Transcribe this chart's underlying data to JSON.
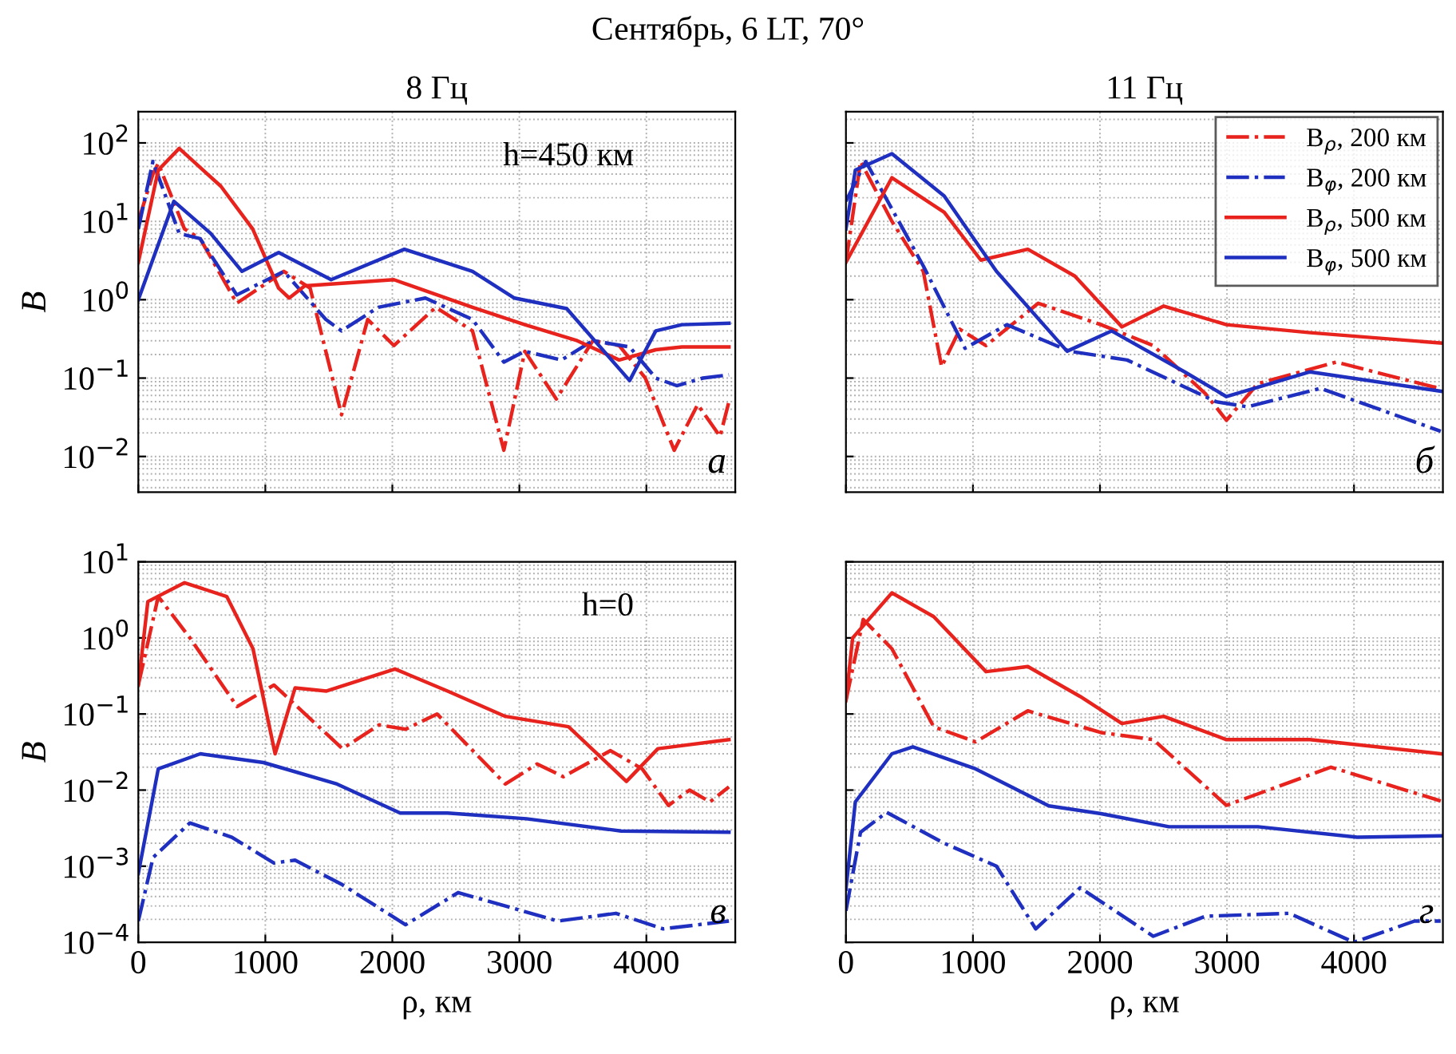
{
  "chart_data": [
    {
      "type": "line",
      "title": "8 Гц",
      "subtitle": "Сентябрь, 6 LT, 70°",
      "ylabel": "B",
      "log": "y",
      "grid": true,
      "legend": false,
      "tick_labels": "y",
      "xlim": [
        0,
        4700
      ],
      "xticks": [
        0,
        1000,
        2000,
        3000,
        4000
      ],
      "ylim": [
        0.0035,
        250
      ],
      "yticks": [
        {
          "value": 0.01,
          "label": "10$^{−2}$"
        },
        {
          "value": 0.1,
          "label": "10$^{−1}$"
        },
        {
          "value": 1,
          "label": "10$^{0}$"
        },
        {
          "value": 10,
          "label": "10$^{1}$"
        },
        {
          "value": 100,
          "label": "10$^{2}$"
        }
      ],
      "annotations": [
        "h=450 км",
        "а"
      ],
      "series": [
        {
          "color": "#e8231e",
          "line_style": "dashdot",
          "x": [
            0,
            115,
            157,
            363,
            487,
            775,
            1146,
            1353,
            1600,
            1806,
            2012,
            2342,
            2631,
            2878,
            3043,
            3291,
            3579,
            3786,
            3992,
            4219,
            4404,
            4580,
            4650
          ],
          "values": [
            10,
            40,
            55,
            8,
            6,
            0.9,
            2.3,
            1.4,
            0.034,
            0.56,
            0.26,
            0.8,
            0.4,
            0.012,
            0.22,
            0.054,
            0.3,
            0.26,
            0.1,
            0.012,
            0.046,
            0.018,
            0.05
          ]
        },
        {
          "color": "#1f2fbf",
          "line_style": "dashdot",
          "x": [
            0,
            115,
            322,
            487,
            775,
            1146,
            1476,
            1600,
            1889,
            2260,
            2631,
            2878,
            3043,
            3332,
            3579,
            3868,
            4074,
            4239,
            4445,
            4650
          ],
          "values": [
            8,
            58,
            7,
            6,
            1.15,
            2.3,
            0.56,
            0.4,
            0.8,
            1.05,
            0.56,
            0.16,
            0.22,
            0.17,
            0.3,
            0.25,
            0.1,
            0.08,
            0.1,
            0.11
          ]
        },
        {
          "color": "#e8231e",
          "line_style": "solid",
          "x": [
            0,
            157,
            322,
            650,
            900,
            1105,
            1188,
            1310,
            2012,
            2631,
            3043,
            3456,
            3786,
            4074,
            4280,
            4650
          ],
          "values": [
            3,
            45,
            85,
            28,
            8,
            1.4,
            1.05,
            1.5,
            1.8,
            0.8,
            0.48,
            0.3,
            0.17,
            0.23,
            0.25,
            0.25
          ]
        },
        {
          "color": "#1f2fbf",
          "line_style": "solid",
          "x": [
            0,
            280,
            570,
            816,
            1105,
            1518,
            2095,
            2631,
            2961,
            3373,
            3868,
            4074,
            4280,
            4650
          ],
          "values": [
            1,
            18,
            7,
            2.3,
            4,
            1.8,
            4.4,
            2.3,
            1.05,
            0.77,
            0.093,
            0.4,
            0.48,
            0.5
          ]
        }
      ]
    },
    {
      "type": "line",
      "title": "11 Гц",
      "log": "y",
      "grid": true,
      "legend": "top right",
      "tick_labels": false,
      "xlim": [
        0,
        4700
      ],
      "xticks": [
        0,
        1000,
        2000,
        3000,
        4000
      ],
      "ylim": [
        0.0035,
        250
      ],
      "yticks": [
        {
          "value": 0.01,
          "label": null
        },
        {
          "value": 0.1,
          "label": null
        },
        {
          "value": 1,
          "label": null
        },
        {
          "value": 10,
          "label": null
        },
        {
          "value": 100,
          "label": null
        }
      ],
      "annotations": [
        "б"
      ],
      "series": [
        {
          "name": "B$_{ρ}$, 200 км",
          "color": "#e8231e",
          "line_style": "dashdot",
          "x": [
            0,
            115,
            362,
            609,
            753,
            897,
            1103,
            1514,
            2008,
            2420,
            2831,
            2996,
            3243,
            3860,
            4683
          ],
          "values": [
            3,
            58,
            10,
            2.3,
            0.14,
            0.42,
            0.26,
            0.9,
            0.48,
            0.26,
            0.063,
            0.029,
            0.085,
            0.16,
            0.073
          ]
        },
        {
          "name": "B$_{φ}$, 200 км",
          "color": "#1f2fbf",
          "line_style": "dashdot",
          "x": [
            0,
            156,
            609,
            938,
            1267,
            1761,
            2214,
            2914,
            3160,
            3737,
            4683
          ],
          "values": [
            18,
            58,
            2.7,
            0.24,
            0.48,
            0.22,
            0.17,
            0.05,
            0.043,
            0.074,
            0.021
          ]
        },
        {
          "name": "B$_{ρ}$, 500 км",
          "color": "#e8231e",
          "line_style": "solid",
          "x": [
            0,
            362,
            774,
            1062,
            1432,
            1802,
            2173,
            2502,
            2996,
            3654,
            4683
          ],
          "values": [
            3,
            36,
            13,
            3.2,
            4.4,
            2,
            0.45,
            0.83,
            0.48,
            0.38,
            0.28
          ]
        },
        {
          "name": "B$_{φ}$, 500 км",
          "color": "#1f2fbf",
          "line_style": "solid",
          "x": [
            0,
            74,
            362,
            774,
            1185,
            1741,
            2091,
            2667,
            2996,
            3654,
            4683
          ],
          "values": [
            8,
            45,
            73,
            21,
            2.3,
            0.22,
            0.4,
            0.12,
            0.058,
            0.12,
            0.068
          ]
        }
      ]
    },
    {
      "type": "line",
      "xlabel": "ρ, км",
      "ylabel": "B",
      "log": "y",
      "grid": true,
      "legend": false,
      "xlim": [
        0,
        4700
      ],
      "xticks": [
        0,
        1000,
        2000,
        3000,
        4000
      ],
      "ylim": [
        0.0001,
        10
      ],
      "yticks": [
        {
          "value": 0.0001,
          "label": "10$^{−4}$"
        },
        {
          "value": 0.001,
          "label": "10$^{−3}$"
        },
        {
          "value": 0.01,
          "label": "10$^{−2}$"
        },
        {
          "value": 0.1,
          "label": "10$^{−1}$"
        },
        {
          "value": 1,
          "label": "10$^{0}$"
        },
        {
          "value": 10,
          "label": "10$^{1}$"
        }
      ],
      "annotations": [
        "h=0",
        "в"
      ],
      "series": [
        {
          "color": "#e8231e",
          "line_style": "dashdot",
          "x": [
            0,
            157,
            406,
            778,
            1068,
            1607,
            1896,
            2104,
            2352,
            2890,
            3139,
            3346,
            3718,
            3967,
            4174,
            4340,
            4500,
            4650
          ],
          "values": [
            0.24,
            3.5,
            1,
            0.125,
            0.24,
            0.035,
            0.072,
            0.063,
            0.1,
            0.012,
            0.022,
            0.015,
            0.033,
            0.019,
            0.0063,
            0.01,
            0.007,
            0.011
          ]
        },
        {
          "color": "#1f2fbf",
          "line_style": "dashdot",
          "x": [
            0,
            116,
            406,
            737,
            1068,
            1234,
            1607,
            2104,
            2518,
            3304,
            3760,
            4133,
            4650
          ],
          "values": [
            0.00019,
            0.0013,
            0.0037,
            0.0024,
            0.0011,
            0.0012,
            0.00057,
            0.00017,
            0.00045,
            0.00019,
            0.00024,
            0.00015,
            0.00019
          ]
        },
        {
          "color": "#e8231e",
          "line_style": "solid",
          "x": [
            0,
            75,
            364,
            696,
            903,
            1077,
            1234,
            1482,
            2021,
            2435,
            2890,
            3387,
            3843,
            4091,
            4650
          ],
          "values": [
            0.24,
            3,
            5.3,
            3.5,
            0.72,
            0.03,
            0.22,
            0.2,
            0.39,
            0.2,
            0.093,
            0.068,
            0.013,
            0.035,
            0.046
          ]
        },
        {
          "color": "#1f2fbf",
          "line_style": "solid",
          "x": [
            0,
            157,
            489,
            986,
            1565,
            2062,
            2435,
            3056,
            3801,
            4650
          ],
          "values": [
            0.0008,
            0.019,
            0.03,
            0.023,
            0.012,
            0.005,
            0.005,
            0.0042,
            0.0029,
            0.0028
          ]
        }
      ]
    },
    {
      "type": "line",
      "xlabel": "ρ, км",
      "log": "y",
      "grid": true,
      "legend": false,
      "tick_labels": "x",
      "xlim": [
        0,
        4700
      ],
      "xticks": [
        0,
        1000,
        2000,
        3000,
        4000
      ],
      "ylim": [
        0.0001,
        10
      ],
      "yticks": [
        {
          "value": 0.0001,
          "label": null
        },
        {
          "value": 0.001,
          "label": null
        },
        {
          "value": 0.01,
          "label": null
        },
        {
          "value": 0.1,
          "label": null
        },
        {
          "value": 1,
          "label": null
        },
        {
          "value": 10,
          "label": null
        }
      ],
      "annotations": [
        "г"
      ],
      "series": [
        {
          "color": "#e8231e",
          "line_style": "dashdot",
          "x": [
            0,
            136,
            362,
            691,
            1021,
            1432,
            2008,
            2420,
            2996,
            3819,
            4683
          ],
          "values": [
            0.15,
            1.75,
            0.72,
            0.068,
            0.043,
            0.11,
            0.057,
            0.046,
            0.0063,
            0.02,
            0.0072
          ]
        },
        {
          "color": "#1f2fbf",
          "line_style": "dashdot",
          "x": [
            0,
            115,
            321,
            774,
            1185,
            1494,
            1844,
            2420,
            2831,
            3490,
            4000,
            4477,
            4683
          ],
          "values": [
            0.00026,
            0.0028,
            0.0051,
            0.002,
            0.001,
            0.00015,
            0.00052,
            0.00012,
            0.00022,
            0.00024,
            0.0001,
            0.00019,
            0.00019
          ]
        },
        {
          "color": "#e8231e",
          "line_style": "solid",
          "x": [
            0,
            53,
            362,
            691,
            1103,
            1432,
            1844,
            2173,
            2502,
            2996,
            3654,
            4683
          ],
          "values": [
            0.15,
            1,
            3.9,
            1.9,
            0.36,
            0.42,
            0.17,
            0.075,
            0.093,
            0.046,
            0.046,
            0.03
          ]
        },
        {
          "color": "#1f2fbf",
          "line_style": "solid",
          "x": [
            0,
            74,
            362,
            527,
            1021,
            1597,
            2008,
            2543,
            3243,
            4025,
            4683
          ],
          "values": [
            0.0005,
            0.007,
            0.03,
            0.037,
            0.019,
            0.0062,
            0.0049,
            0.0033,
            0.0033,
            0.0024,
            0.0025
          ]
        }
      ]
    }
  ]
}
